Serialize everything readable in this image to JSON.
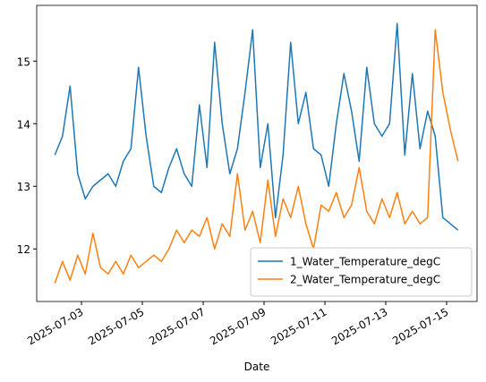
{
  "chart_data": {
    "type": "line",
    "x_label": "Date",
    "x": [
      "2025-07-02T03:00",
      "2025-07-02T09:00",
      "2025-07-02T15:00",
      "2025-07-02T21:00",
      "2025-07-03T03:00",
      "2025-07-03T09:00",
      "2025-07-03T15:00",
      "2025-07-03T21:00",
      "2025-07-04T03:00",
      "2025-07-04T09:00",
      "2025-07-04T15:00",
      "2025-07-04T21:00",
      "2025-07-05T03:00",
      "2025-07-05T09:00",
      "2025-07-05T15:00",
      "2025-07-05T21:00",
      "2025-07-06T03:00",
      "2025-07-06T09:00",
      "2025-07-06T15:00",
      "2025-07-06T21:00",
      "2025-07-07T03:00",
      "2025-07-07T09:00",
      "2025-07-07T15:00",
      "2025-07-07T21:00",
      "2025-07-08T03:00",
      "2025-07-08T09:00",
      "2025-07-08T15:00",
      "2025-07-08T21:00",
      "2025-07-09T03:00",
      "2025-07-09T09:00",
      "2025-07-09T15:00",
      "2025-07-09T21:00",
      "2025-07-10T03:00",
      "2025-07-10T09:00",
      "2025-07-10T15:00",
      "2025-07-10T21:00",
      "2025-07-11T03:00",
      "2025-07-11T09:00",
      "2025-07-11T15:00",
      "2025-07-11T21:00",
      "2025-07-12T03:00",
      "2025-07-12T09:00",
      "2025-07-12T15:00",
      "2025-07-12T21:00",
      "2025-07-13T03:00",
      "2025-07-13T09:00",
      "2025-07-13T15:00",
      "2025-07-13T21:00",
      "2025-07-14T03:00",
      "2025-07-14T09:00",
      "2025-07-14T15:00",
      "2025-07-14T21:00",
      "2025-07-15T03:00",
      "2025-07-15T09:00"
    ],
    "series": [
      {
        "name": "1_Water_Temperature_degC",
        "color": "#1f77b4",
        "values": [
          13.5,
          13.8,
          14.6,
          13.2,
          12.8,
          13.0,
          13.1,
          13.2,
          13.0,
          13.4,
          13.6,
          14.9,
          13.8,
          13.0,
          12.9,
          13.3,
          13.6,
          13.2,
          13.0,
          14.3,
          13.3,
          15.3,
          14.0,
          13.2,
          13.6,
          14.5,
          15.5,
          13.3,
          14.0,
          12.5,
          13.5,
          15.3,
          14.0,
          14.5,
          13.6,
          13.5,
          13.0,
          14.0,
          14.8,
          14.2,
          13.4,
          14.9,
          14.0,
          13.8,
          14.0,
          15.6,
          13.5,
          14.8,
          13.6,
          14.2,
          13.8,
          12.5,
          12.4,
          12.3
        ]
      },
      {
        "name": "2_Water_Temperature_degC",
        "color": "#ff7f0e",
        "values": [
          11.45,
          11.8,
          11.5,
          11.9,
          11.6,
          12.25,
          11.7,
          11.6,
          11.8,
          11.6,
          11.9,
          11.7,
          11.8,
          11.9,
          11.8,
          12.0,
          12.3,
          12.1,
          12.3,
          12.2,
          12.5,
          12.0,
          12.4,
          12.2,
          13.2,
          12.3,
          12.6,
          12.1,
          13.1,
          12.2,
          12.8,
          12.5,
          13.0,
          12.4,
          12.0,
          12.7,
          12.6,
          12.9,
          12.5,
          12.7,
          13.3,
          12.6,
          12.4,
          12.8,
          12.5,
          12.9,
          12.4,
          12.6,
          12.4,
          12.5,
          15.5,
          14.5,
          13.9,
          13.4
        ]
      }
    ],
    "xlim": [
      "2025-07-01T12:40",
      "2025-07-16T00:00"
    ],
    "xticks": [
      "2025-07-03",
      "2025-07-05",
      "2025-07-07",
      "2025-07-09",
      "2025-07-11",
      "2025-07-13",
      "2025-07-15"
    ],
    "ylim": [
      11.16,
      15.89
    ],
    "yticks": [
      12,
      13,
      14,
      15
    ],
    "legend": "lower right",
    "grid": false
  }
}
